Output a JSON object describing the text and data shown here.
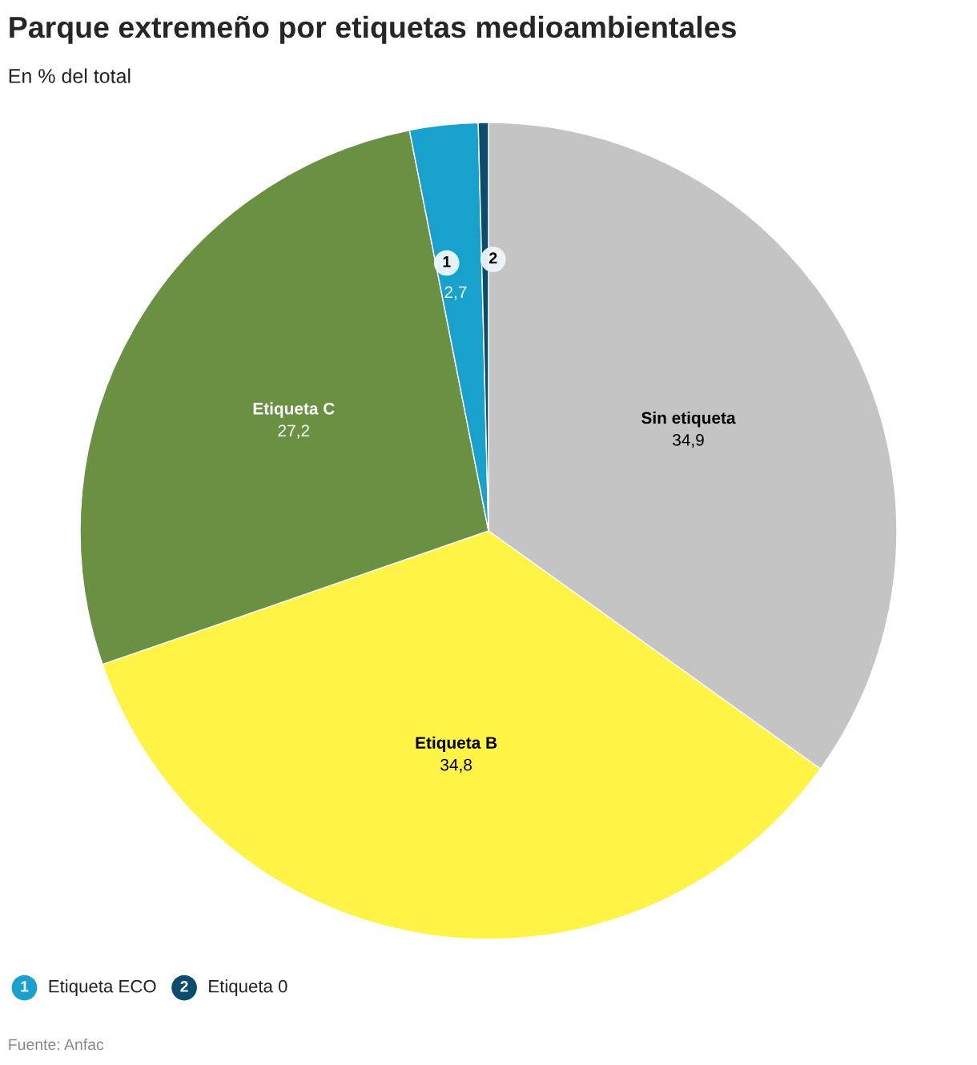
{
  "chart_data": {
    "type": "pie",
    "title": "Parque extremeño por etiquetas medioambientales",
    "subtitle": "En % del total",
    "categories": [
      "Sin etiqueta",
      "Etiqueta B",
      "Etiqueta C",
      "Etiqueta ECO",
      "Etiqueta 0"
    ],
    "values": [
      34.9,
      34.8,
      27.2,
      2.7,
      0.4
    ],
    "value_labels": [
      "34,9",
      "34,8",
      "27,2",
      "2,7",
      null
    ],
    "colors": [
      "#c4c4c4",
      "#fff345",
      "#6a9142",
      "#18a1cd",
      "#0b4b6e"
    ],
    "legend": "bottom",
    "annotations": [
      "1",
      "2",
      "Fuente: Anfac"
    ]
  }
}
